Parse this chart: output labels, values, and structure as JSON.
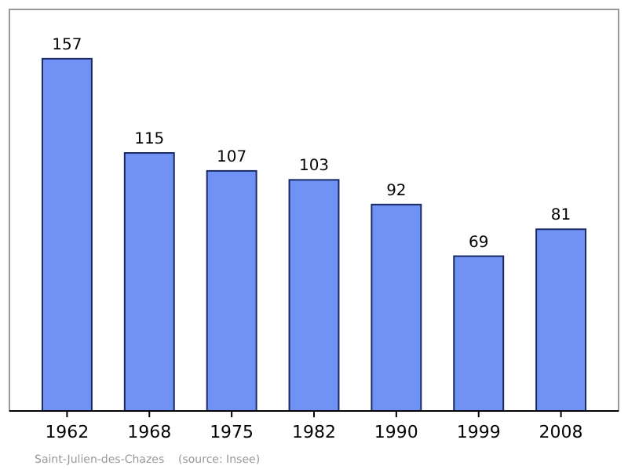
{
  "chart_data": {
    "type": "bar",
    "categories": [
      "1962",
      "1968",
      "1975",
      "1982",
      "1990",
      "1999",
      "2008"
    ],
    "values": [
      157,
      115,
      107,
      103,
      92,
      69,
      81
    ],
    "color": "#7092f5",
    "data_labels": true,
    "grid": false,
    "annotations": [
      "Saint-Julien-des-Chazes    (source: Insee)"
    ]
  }
}
